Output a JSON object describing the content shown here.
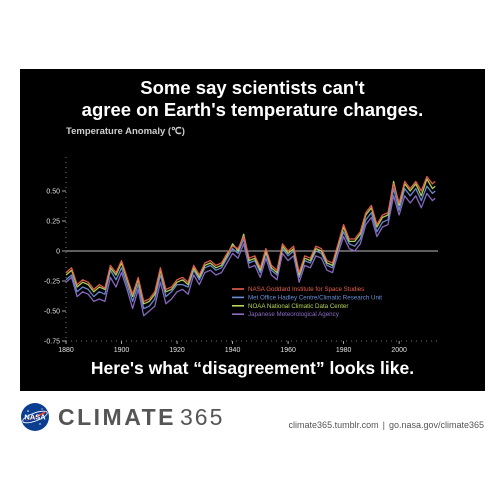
{
  "headline": {
    "line1": "Some say scientists can't",
    "line2": "agree on Earth's temperature changes."
  },
  "caption": "Here's what “disagreement” looks like.",
  "footer": {
    "brand_bold": "CLIMATE",
    "brand_light": "365",
    "link1": "climate365.tumblr.com",
    "separator": "|",
    "link2": "go.nasa.gov/climate365"
  },
  "colors": {
    "background": "#000000",
    "nasa": "#e8604c",
    "hadley": "#6b8fd6",
    "noaa": "#b6d75a",
    "jma": "#8e6cc8",
    "zero_line": "#bbbbbb"
  },
  "chart_data": {
    "type": "line",
    "ylabel": "Temperature Anomaly (℃)",
    "xlim": [
      1880,
      2014
    ],
    "ylim": [
      -0.75,
      0.75
    ],
    "x_ticks": [
      1880,
      1900,
      1920,
      1940,
      1960,
      1980,
      2000
    ],
    "y_ticks": [
      {
        "v": 0.5,
        "label": "0.50"
      },
      {
        "v": 0.25,
        "label": "0.25"
      },
      {
        "v": 0,
        "label": "0"
      },
      {
        "v": -0.25,
        "label": "-0.25"
      },
      {
        "v": -0.5,
        "label": "-0.50"
      },
      {
        "v": -0.75,
        "label": "-0.75"
      }
    ],
    "legend_position": "lower-right",
    "x": [
      1880,
      1882,
      1884,
      1886,
      1888,
      1890,
      1892,
      1894,
      1896,
      1898,
      1900,
      1902,
      1904,
      1906,
      1908,
      1910,
      1912,
      1914,
      1916,
      1918,
      1920,
      1922,
      1924,
      1926,
      1928,
      1930,
      1932,
      1934,
      1936,
      1938,
      1940,
      1942,
      1944,
      1946,
      1948,
      1950,
      1952,
      1954,
      1956,
      1958,
      1960,
      1962,
      1964,
      1966,
      1968,
      1970,
      1972,
      1974,
      1976,
      1978,
      1980,
      1982,
      1984,
      1986,
      1988,
      1990,
      1992,
      1994,
      1996,
      1998,
      2000,
      2002,
      2004,
      2006,
      2008,
      2010,
      2012,
      2013
    ],
    "series": [
      {
        "name": "NASA Goddard Institute for Space Studies",
        "values": [
          -0.18,
          -0.14,
          -0.28,
          -0.24,
          -0.26,
          -0.32,
          -0.28,
          -0.31,
          -0.12,
          -0.18,
          -0.08,
          -0.22,
          -0.36,
          -0.22,
          -0.42,
          -0.4,
          -0.34,
          -0.14,
          -0.32,
          -0.3,
          -0.24,
          -0.22,
          -0.26,
          -0.12,
          -0.2,
          -0.1,
          -0.08,
          -0.12,
          -0.1,
          -0.02,
          0.04,
          0.02,
          0.12,
          -0.06,
          -0.04,
          -0.14,
          0.02,
          -0.12,
          -0.16,
          0.06,
          0.0,
          0.04,
          -0.18,
          -0.04,
          -0.06,
          0.04,
          0.02,
          -0.08,
          -0.1,
          0.06,
          0.22,
          0.1,
          0.1,
          0.16,
          0.32,
          0.38,
          0.22,
          0.3,
          0.32,
          0.56,
          0.4,
          0.58,
          0.52,
          0.58,
          0.5,
          0.62,
          0.56,
          0.58
        ]
      },
      {
        "name": "Met Office Hadley Centre/Climatic Research Unit",
        "values": [
          -0.24,
          -0.2,
          -0.34,
          -0.3,
          -0.32,
          -0.38,
          -0.34,
          -0.36,
          -0.16,
          -0.24,
          -0.14,
          -0.28,
          -0.42,
          -0.28,
          -0.48,
          -0.46,
          -0.4,
          -0.2,
          -0.38,
          -0.34,
          -0.28,
          -0.28,
          -0.3,
          -0.16,
          -0.24,
          -0.14,
          -0.12,
          -0.16,
          -0.14,
          -0.06,
          0.02,
          -0.02,
          0.1,
          -0.1,
          -0.08,
          -0.18,
          -0.02,
          -0.16,
          -0.2,
          0.02,
          -0.04,
          0.0,
          -0.22,
          -0.08,
          -0.1,
          0.0,
          -0.02,
          -0.12,
          -0.14,
          0.02,
          0.16,
          0.06,
          0.04,
          0.1,
          0.26,
          0.32,
          0.16,
          0.24,
          0.26,
          0.52,
          0.34,
          0.52,
          0.46,
          0.52,
          0.42,
          0.54,
          0.48,
          0.5
        ]
      },
      {
        "name": "NOAA National Climatic Data Center",
        "values": [
          -0.2,
          -0.16,
          -0.3,
          -0.26,
          -0.28,
          -0.34,
          -0.3,
          -0.32,
          -0.14,
          -0.2,
          -0.1,
          -0.24,
          -0.38,
          -0.24,
          -0.44,
          -0.42,
          -0.36,
          -0.16,
          -0.34,
          -0.32,
          -0.26,
          -0.24,
          -0.28,
          -0.14,
          -0.22,
          -0.12,
          -0.1,
          -0.14,
          -0.12,
          -0.04,
          0.06,
          0.0,
          0.14,
          -0.08,
          -0.06,
          -0.16,
          0.0,
          -0.14,
          -0.18,
          0.04,
          -0.02,
          0.02,
          -0.2,
          -0.06,
          -0.08,
          0.02,
          0.0,
          -0.1,
          -0.12,
          0.04,
          0.2,
          0.08,
          0.08,
          0.14,
          0.3,
          0.36,
          0.2,
          0.28,
          0.3,
          0.58,
          0.38,
          0.56,
          0.5,
          0.56,
          0.46,
          0.6,
          0.52,
          0.54
        ]
      },
      {
        "name": "Japanese Meteorological Agency",
        "values": [
          -0.26,
          -0.22,
          -0.38,
          -0.34,
          -0.36,
          -0.42,
          -0.4,
          -0.42,
          -0.22,
          -0.3,
          -0.18,
          -0.32,
          -0.48,
          -0.32,
          -0.54,
          -0.5,
          -0.46,
          -0.26,
          -0.44,
          -0.4,
          -0.34,
          -0.32,
          -0.36,
          -0.2,
          -0.28,
          -0.18,
          -0.16,
          -0.2,
          -0.18,
          -0.1,
          -0.02,
          -0.06,
          0.06,
          -0.14,
          -0.12,
          -0.22,
          -0.06,
          -0.2,
          -0.24,
          -0.02,
          -0.08,
          -0.04,
          -0.26,
          -0.12,
          -0.14,
          -0.04,
          -0.06,
          -0.16,
          -0.18,
          -0.02,
          0.12,
          0.02,
          0.0,
          0.06,
          0.22,
          0.28,
          0.12,
          0.2,
          0.22,
          0.46,
          0.3,
          0.46,
          0.4,
          0.46,
          0.36,
          0.48,
          0.42,
          0.44
        ]
      }
    ]
  }
}
